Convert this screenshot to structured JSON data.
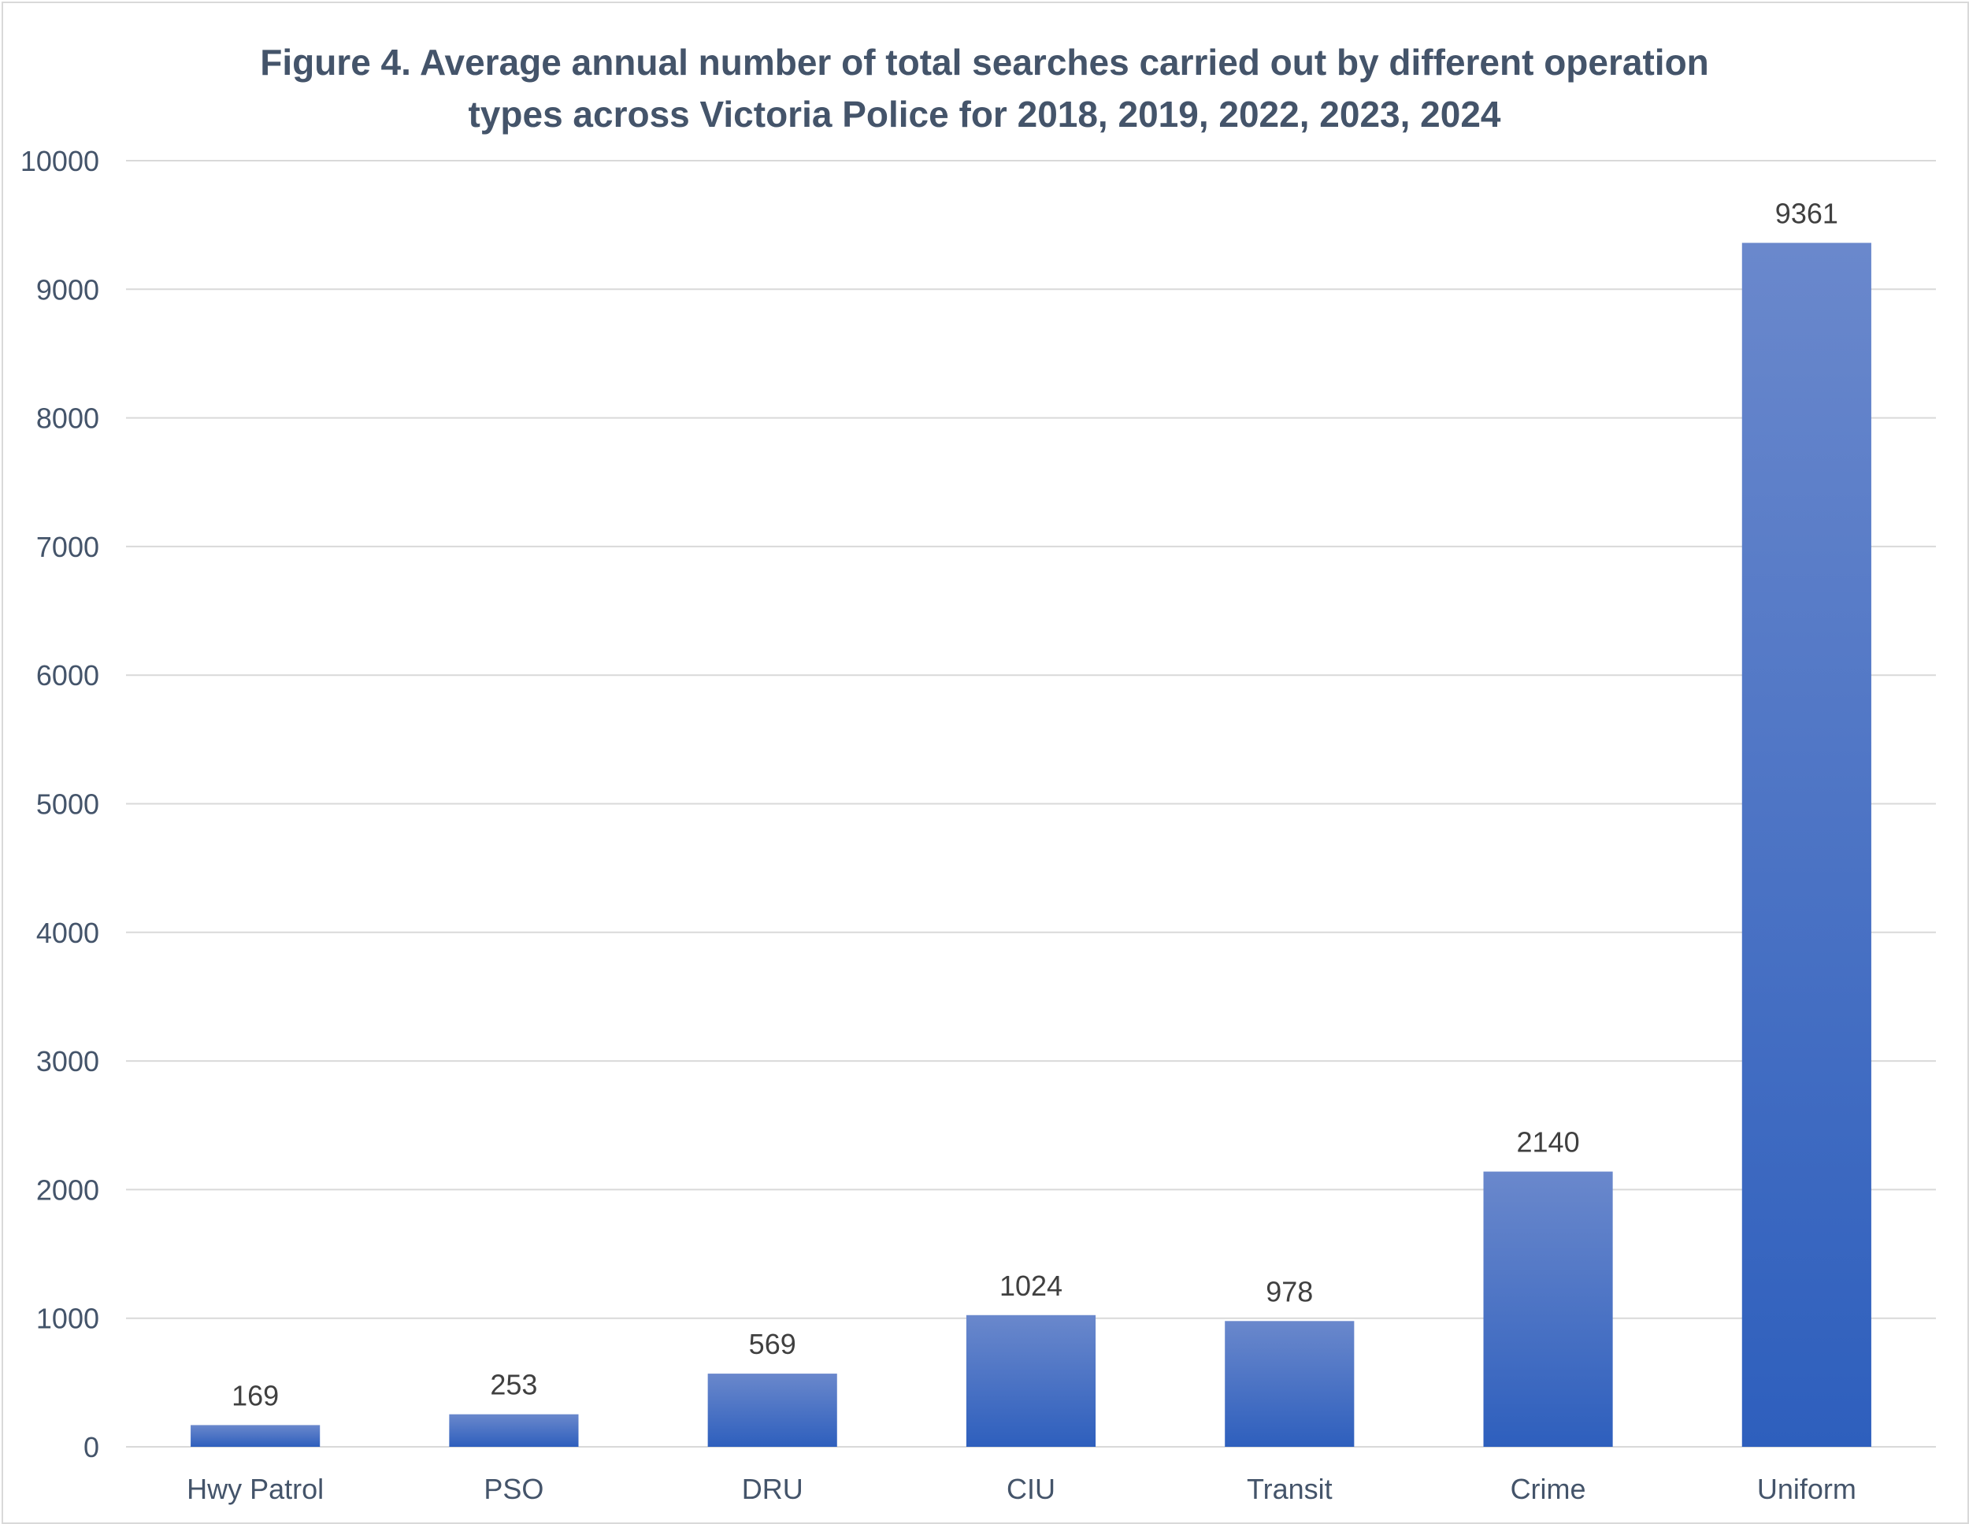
{
  "chart_data": {
    "type": "bar",
    "title_lines": [
      "Figure 4. Average annual number of total searches carried out by different operation",
      "types across Victoria Police for 2018, 2019, 2022, 2023, 2024"
    ],
    "categories": [
      "Hwy Patrol",
      "PSO",
      "DRU",
      "CIU",
      "Transit",
      "Crime",
      "Uniform"
    ],
    "values": [
      169,
      253,
      569,
      1024,
      978,
      2140,
      9361
    ],
    "y_ticks": [
      0,
      1000,
      2000,
      3000,
      4000,
      5000,
      6000,
      7000,
      8000,
      9000,
      10000
    ],
    "ylim": [
      0,
      10000
    ],
    "xlabel": "",
    "ylabel": "",
    "grid": true,
    "legend": "none",
    "bar_color_top": "#6a88cc",
    "bar_color_bottom": "#2e5fbd",
    "grid_color": "#d9d9d9",
    "text_color": "#44546a"
  }
}
